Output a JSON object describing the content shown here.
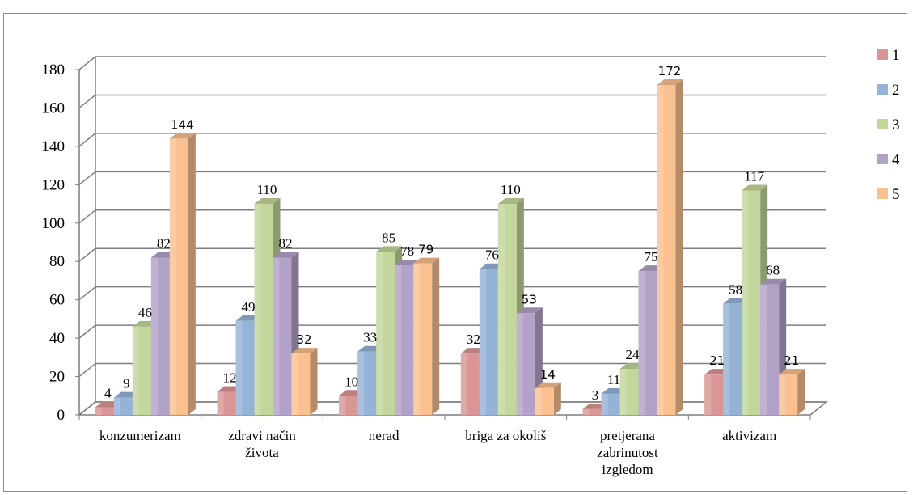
{
  "chart_data": {
    "type": "bar",
    "categories": [
      [
        "konzumerizam"
      ],
      [
        "zdravi način",
        "života"
      ],
      [
        "nerad"
      ],
      [
        "briga za okoliš"
      ],
      [
        "pretjerana",
        "zabrinutost",
        "izgledom"
      ],
      [
        "aktivizam"
      ]
    ],
    "series": [
      {
        "name": "1",
        "color": "#d99694",
        "values": [
          4,
          12,
          10,
          32,
          3,
          21
        ]
      },
      {
        "name": "2",
        "color": "#95b3d7",
        "values": [
          9,
          49,
          33,
          76,
          11,
          58
        ]
      },
      {
        "name": "3",
        "color": "#c3d69b",
        "values": [
          46,
          110,
          85,
          110,
          24,
          117
        ]
      },
      {
        "name": "4",
        "color": "#b3a2c7",
        "values": [
          82,
          82,
          78,
          53,
          75,
          68
        ]
      },
      {
        "name": "5",
        "color": "#fac090",
        "values": [
          144,
          32,
          79,
          14,
          172,
          21
        ]
      }
    ],
    "ylim": [
      0,
      180
    ],
    "yticks": [
      "0",
      "20",
      "40",
      "60",
      "80",
      "100",
      "120",
      "140",
      "160",
      "180"
    ],
    "grid": true,
    "legend_position": "right",
    "style": "3d-clustered-column"
  }
}
